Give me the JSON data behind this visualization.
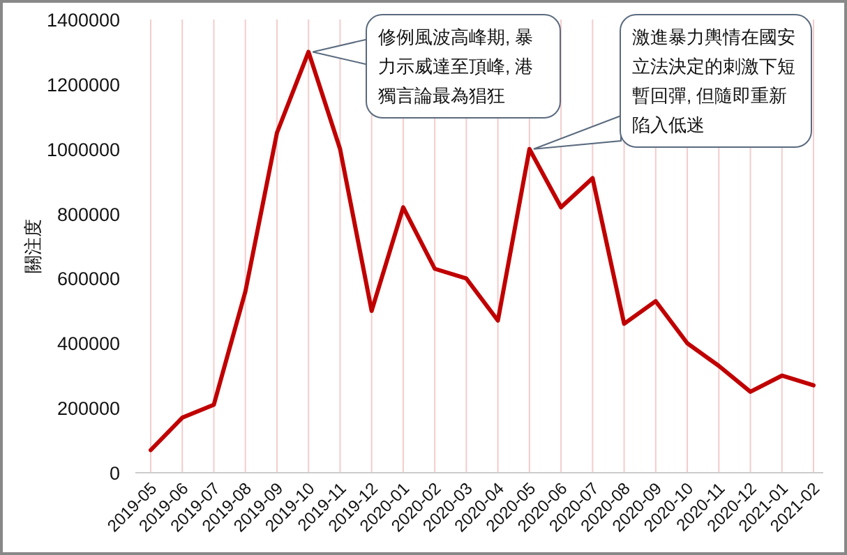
{
  "chart_data": {
    "type": "line",
    "ylabel": "關注度",
    "categories": [
      "2019-05",
      "2019-06",
      "2019-07",
      "2019-08",
      "2019-09",
      "2019-10",
      "2019-11",
      "2019-12",
      "2020-01",
      "2020-02",
      "2020-03",
      "2020-04",
      "2020-05",
      "2020-06",
      "2020-07",
      "2020-08",
      "2020-09",
      "2020-10",
      "2020-11",
      "2020-12",
      "2021-01",
      "2021-02"
    ],
    "series": [
      {
        "color": "#c00000",
        "values": [
          70000,
          170000,
          210000,
          560000,
          1050000,
          1300000,
          1000000,
          500000,
          820000,
          630000,
          600000,
          470000,
          1000000,
          820000,
          910000,
          460000,
          530000,
          400000,
          330000,
          250000,
          300000,
          270000
        ]
      }
    ],
    "ylim": [
      0,
      1400000
    ],
    "yticks": [
      0,
      200000,
      400000,
      600000,
      800000,
      1000000,
      1200000,
      1400000
    ],
    "grid": "x",
    "marker": "none",
    "line_style": "solid",
    "annotations": [
      {
        "text": "修例風波高峰期, 暴力示威達至頂峰, 港獨言論最為猖狂",
        "x": "2019-10",
        "y": 1300000
      },
      {
        "text": "激進暴力輿情在國安立法決定的刺激下短暫回彈, 但隨即重新陷入低迷",
        "x": "2020-05",
        "y": 1000000
      }
    ]
  }
}
